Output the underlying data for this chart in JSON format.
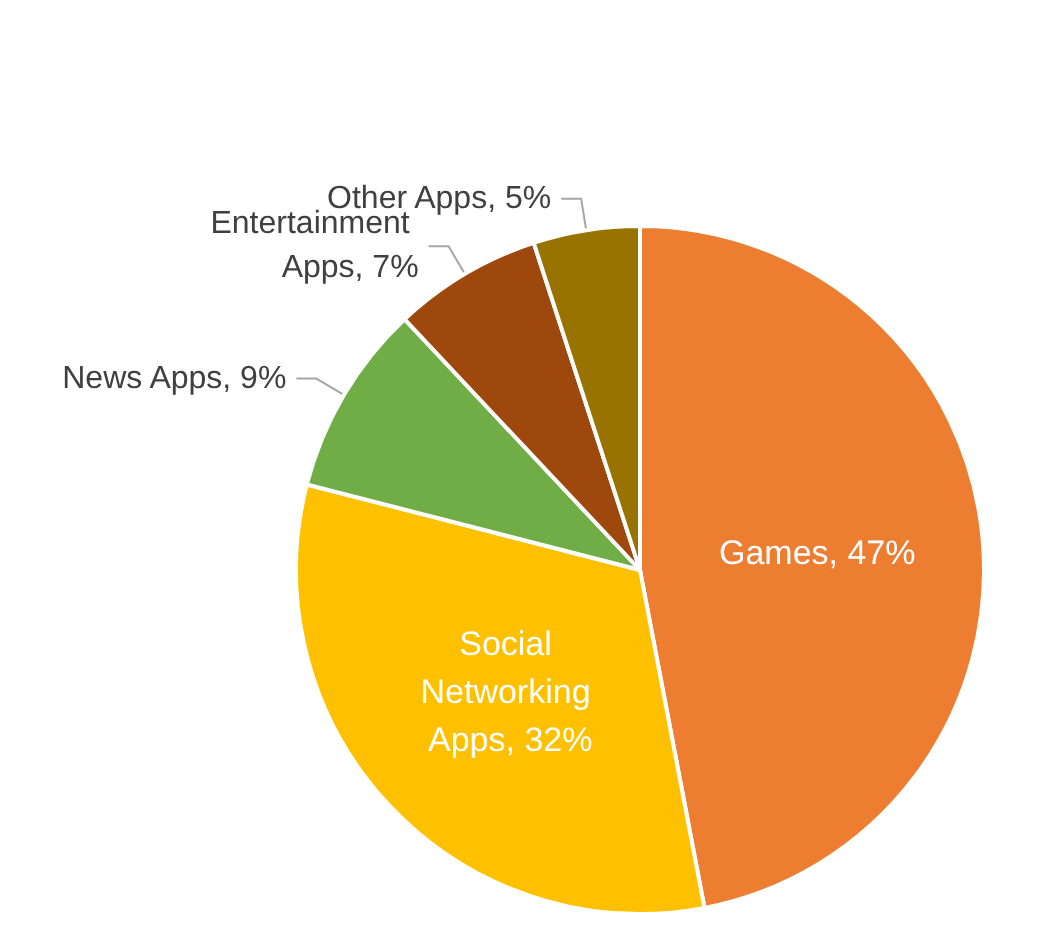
{
  "chart_data": {
    "type": "pie",
    "categories": [
      "Games",
      "Social Networking Apps",
      "News Apps",
      "Entertainment Apps",
      "Other Apps"
    ],
    "values": [
      47,
      32,
      9,
      7,
      5
    ],
    "value_labels": [
      "47%",
      "32%",
      "9%",
      "7%",
      "5%"
    ],
    "colors": [
      "#ed7d31",
      "#ffc000",
      "#70ad47",
      "#9e480e",
      "#997300"
    ],
    "legend": false
  }
}
